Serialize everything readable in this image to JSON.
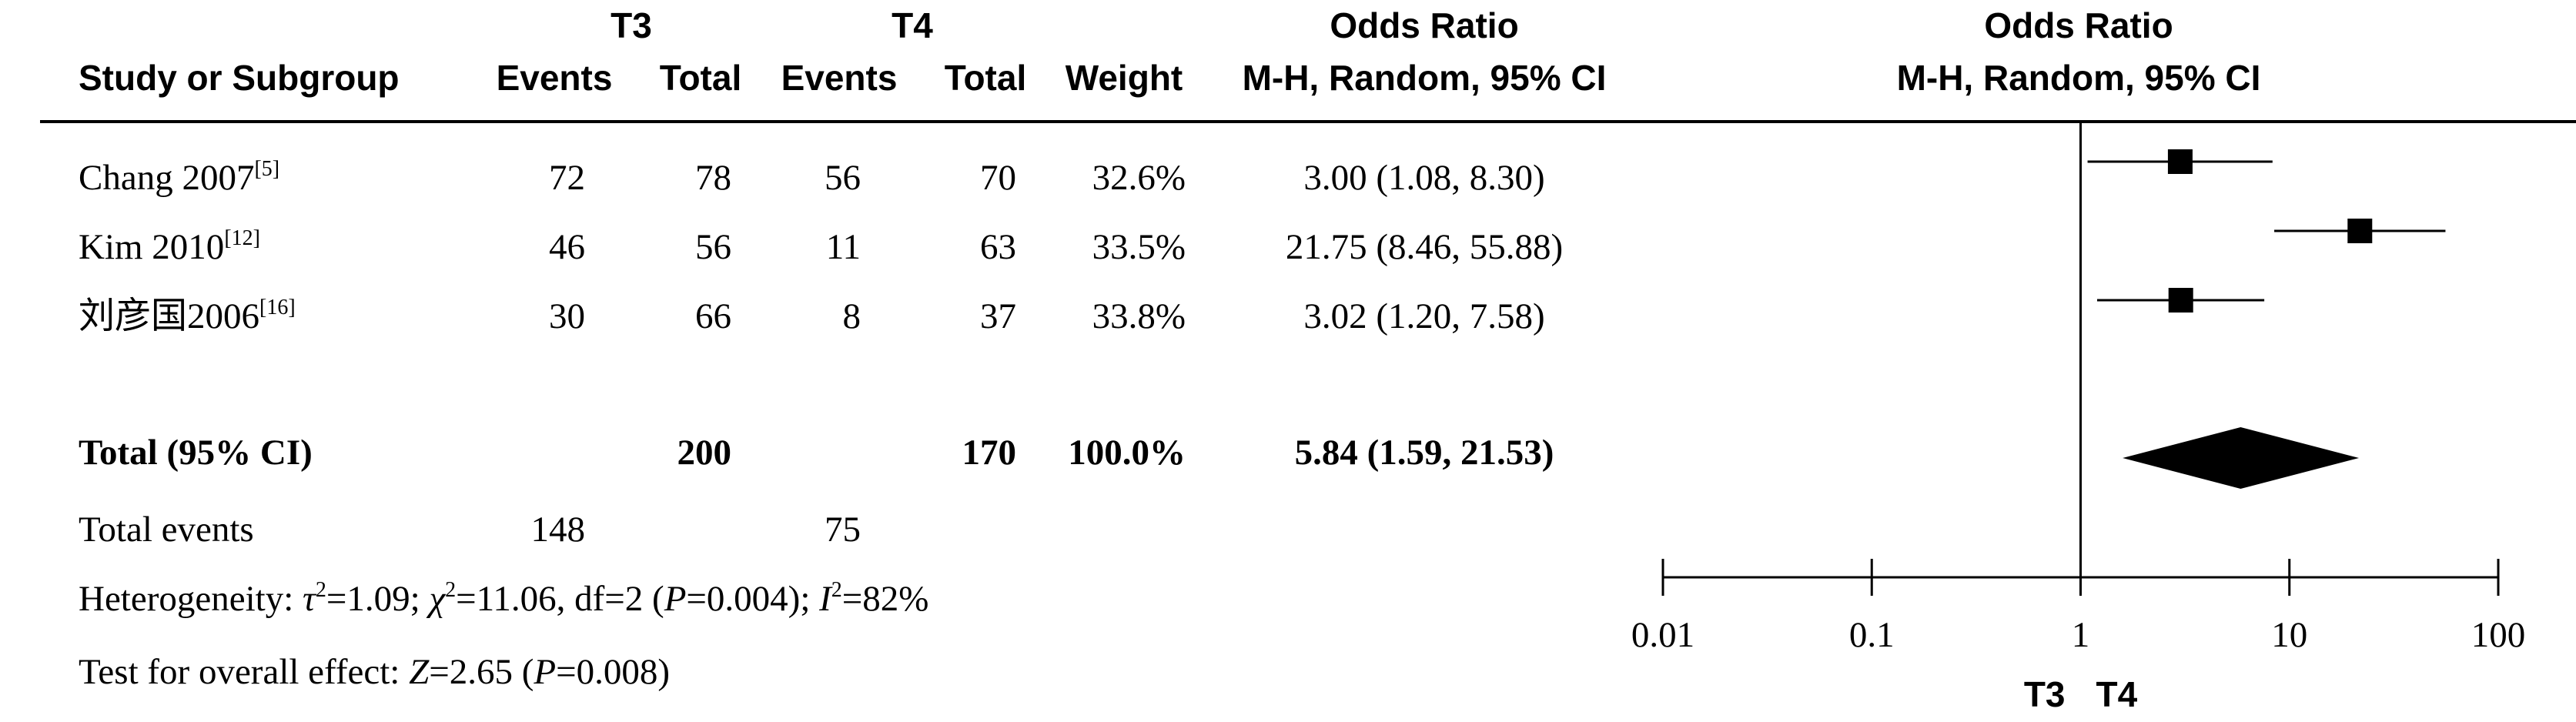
{
  "header": {
    "group1": "T3",
    "group2": "T4",
    "study_col": "Study or Subgroup",
    "events": "Events",
    "total": "Total",
    "weight": "Weight",
    "or_title": "Odds Ratio",
    "or_method": "M-H, Random, 95% CI",
    "plot_title": "Odds Ratio",
    "plot_method": "M-H, Random, 95% CI"
  },
  "studies": [
    {
      "name": "Chang 2007",
      "ref": "[5]",
      "e1": "72",
      "t1": "78",
      "e2": "56",
      "t2": "70",
      "weight": "32.6%",
      "ci_text": "3.00 (1.08, 8.30)"
    },
    {
      "name": "Kim 2010",
      "ref": "[12]",
      "e1": "46",
      "t1": "56",
      "e2": "11",
      "t2": "63",
      "weight": "33.5%",
      "ci_text": "21.75 (8.46, 55.88)"
    },
    {
      "name": "刘彦国2006",
      "ref": "[16]",
      "e1": "30",
      "t1": "66",
      "e2": "8",
      "t2": "37",
      "weight": "33.8%",
      "ci_text": "3.02 (1.20, 7.58)"
    }
  ],
  "total": {
    "label": "Total (95% CI)",
    "t1": "200",
    "t2": "170",
    "weight": "100.0%",
    "ci_text": "5.84 (1.59, 21.53)"
  },
  "total_events": {
    "label": "Total events",
    "e1": "148",
    "e2": "75"
  },
  "heterogeneity": {
    "prefix": "Heterogeneity: ",
    "tau_sym": "τ",
    "tau_val": "=1.09; ",
    "chi_sym": "χ",
    "chi_val": "=11.06, df=2 (",
    "p_sym": "P",
    "p_val": "=0.004); ",
    "i_sym": "I",
    "i_val": "=82%",
    "sq": "2"
  },
  "overall": {
    "prefix": "Test for overall effect: ",
    "z_sym": "Z",
    "z_val": "=2.65 (",
    "p_sym": "P",
    "p_val": "=0.008)"
  },
  "chart_data": {
    "type": "scatter",
    "title": "Odds Ratio",
    "subtitle": "M-H, Random, 95% CI",
    "x_scale": "log",
    "xlim": [
      0.01,
      100
    ],
    "x_ticks": [
      0.01,
      0.1,
      1,
      10,
      100
    ],
    "x_tick_labels": [
      "0.01",
      "0.1",
      "1",
      "10",
      "100"
    ],
    "reference_line": 1,
    "direction_labels": [
      "T3",
      "T4"
    ],
    "points": [
      {
        "study": "Chang 2007",
        "or": 3.0,
        "lower": 1.08,
        "upper": 8.3,
        "weight": 32.6
      },
      {
        "study": "Kim 2010",
        "or": 21.75,
        "lower": 8.46,
        "upper": 55.88,
        "weight": 33.5
      },
      {
        "study": "刘彦国2006",
        "or": 3.02,
        "lower": 1.2,
        "upper": 7.58,
        "weight": 33.8
      }
    ],
    "pooled": {
      "or": 5.84,
      "lower": 1.59,
      "upper": 21.53
    }
  }
}
